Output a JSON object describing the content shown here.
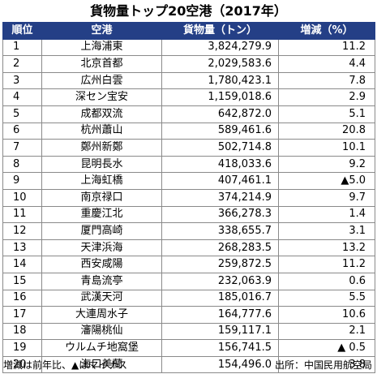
{
  "title": "貨物量トップ20空港（2017年）",
  "columns": [
    "順位",
    "空港",
    "貨物量（トン）",
    "増減（%）"
  ],
  "rows": [
    {
      "rank": "1",
      "airport": "上海浦東",
      "cargo": "3,824,279.9",
      "change": "11.2"
    },
    {
      "rank": "2",
      "airport": "北京首都",
      "cargo": "2,029,583.6",
      "change": "4.4"
    },
    {
      "rank": "3",
      "airport": "広州白雲",
      "cargo": "1,780,423.1",
      "change": "7.8"
    },
    {
      "rank": "4",
      "airport": "深セン宝安",
      "cargo": "1,159,018.6",
      "change": "2.9"
    },
    {
      "rank": "5",
      "airport": "成都双流",
      "cargo": "642,872.0",
      "change": "5.1"
    },
    {
      "rank": "6",
      "airport": "杭州蕭山",
      "cargo": "589,461.6",
      "change": "20.8"
    },
    {
      "rank": "7",
      "airport": "鄭州新鄭",
      "cargo": "502,714.8",
      "change": "10.1"
    },
    {
      "rank": "8",
      "airport": "昆明長水",
      "cargo": "418,033.6",
      "change": "9.2"
    },
    {
      "rank": "9",
      "airport": "上海虹橋",
      "cargo": "407,461.1",
      "change": "▲5.0"
    },
    {
      "rank": "10",
      "airport": "南京禄口",
      "cargo": "374,214.9",
      "change": "9.7"
    },
    {
      "rank": "11",
      "airport": "重慶江北",
      "cargo": "366,278.3",
      "change": "1.4"
    },
    {
      "rank": "12",
      "airport": "厦門高崎",
      "cargo": "338,655.7",
      "change": "3.1"
    },
    {
      "rank": "13",
      "airport": "天津浜海",
      "cargo": "268,283.5",
      "change": "13.2"
    },
    {
      "rank": "14",
      "airport": "西安咸陽",
      "cargo": "259,872.5",
      "change": "11.2"
    },
    {
      "rank": "15",
      "airport": "青島流亭",
      "cargo": "232,063.9",
      "change": "0.6"
    },
    {
      "rank": "16",
      "airport": "武漢天河",
      "cargo": "185,016.7",
      "change": "5.5"
    },
    {
      "rank": "17",
      "airport": "大連周水子",
      "cargo": "164,777.6",
      "change": "10.6"
    },
    {
      "rank": "18",
      "airport": "瀋陽桃仙",
      "cargo": "159,117.1",
      "change": "2.1"
    },
    {
      "rank": "19",
      "airport": "ウルムチ地窩堡",
      "cargo": "156,741.5",
      "change": "▲ 0.5"
    },
    {
      "rank": "20",
      "airport": "海口美蘭",
      "cargo": "154,496.0",
      "change": "3.8"
    }
  ],
  "footer": {
    "note": "増減は前年比、▲はマイナス",
    "source": "出所：中国民用航空局"
  },
  "colors": {
    "header_bg": "#243f86",
    "header_text": "#ffffff"
  }
}
